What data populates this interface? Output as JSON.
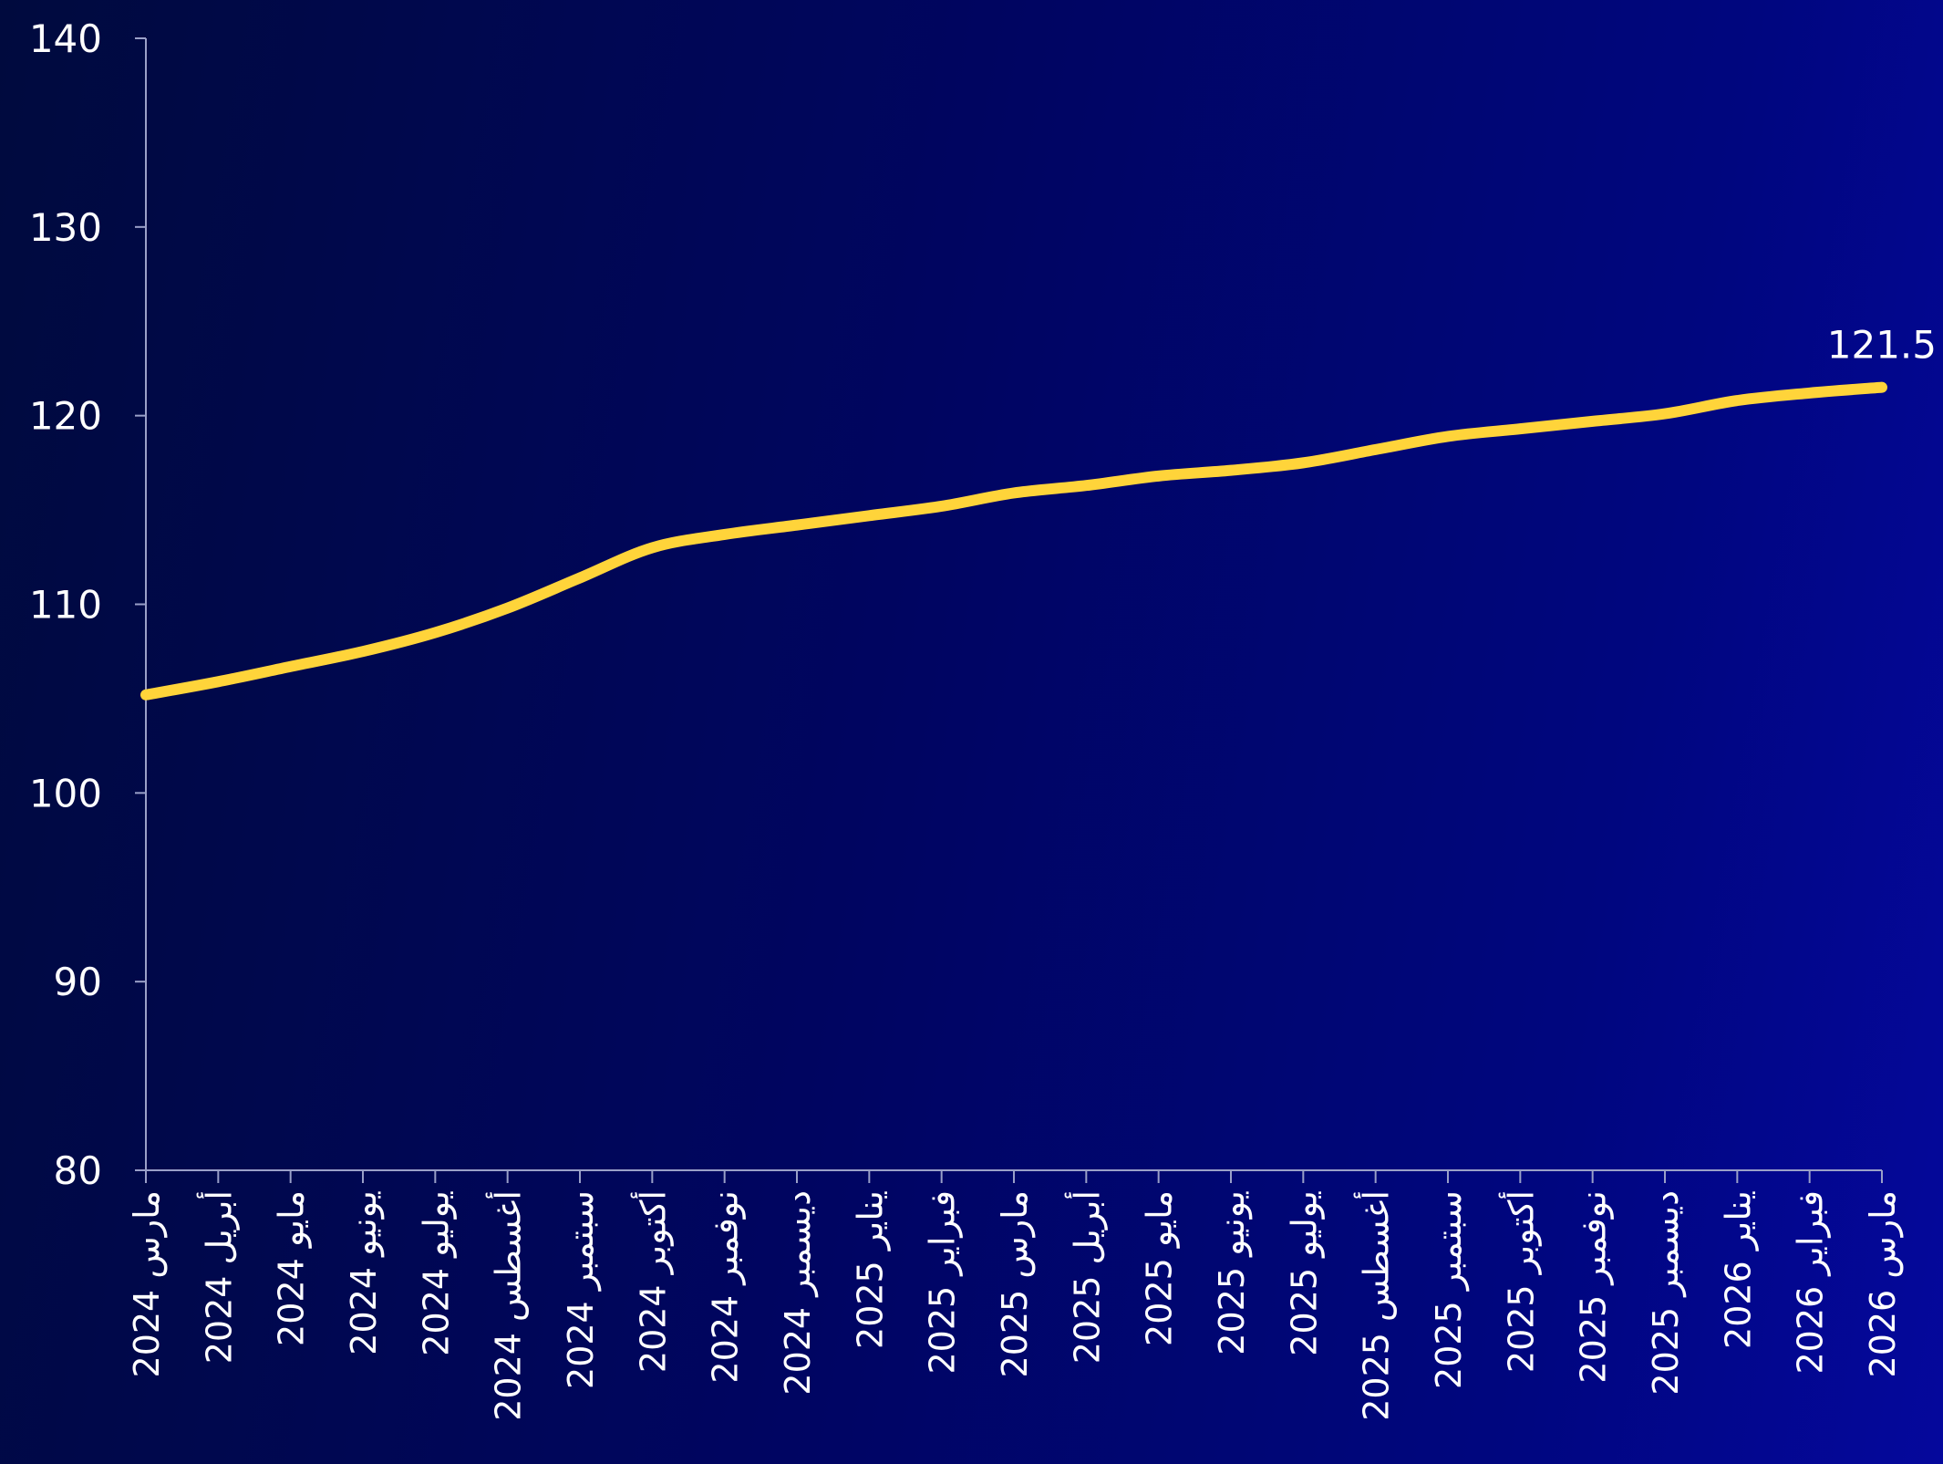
{
  "chart_data": {
    "type": "line",
    "title": "",
    "xlabel": "",
    "ylabel": "",
    "ylim": [
      80,
      140
    ],
    "y_ticks": [
      80,
      90,
      100,
      110,
      120,
      130,
      140
    ],
    "grid": false,
    "legend": "none",
    "categories": [
      "مارس 2024",
      "أبريل 2024",
      "مايو 2024",
      "يونيو 2024",
      "يوليو 2024",
      "أغسطس 2024",
      "سبتمبر 2024",
      "أكتوبر 2024",
      "نوفمبر 2024",
      "ديسمبر 2024",
      "يناير 2025",
      "فبراير 2025",
      "مارس 2025",
      "أبريل 2025",
      "مايو 2025",
      "يونيو 2025",
      "يوليو 2025",
      "أغسطس 2025",
      "سبتمبر 2025",
      "أكتوبر 2025",
      "نوفمبر 2025",
      "ديسمبر 2025",
      "يناير 2026",
      "فبراير 2026",
      "مارس 2026"
    ],
    "series": [
      {
        "values": [
          105.2,
          105.9,
          106.7,
          107.5,
          108.5,
          109.8,
          111.4,
          113.0,
          113.7,
          114.2,
          114.7,
          115.2,
          115.9,
          116.3,
          116.8,
          117.1,
          117.5,
          118.2,
          118.9,
          119.3,
          119.7,
          120.1,
          120.8,
          121.2,
          121.5
        ],
        "color": "#ffd43a",
        "end_label": "121.5"
      }
    ],
    "colors": {
      "line": "#ffd43a",
      "axis": "#9aa0c8",
      "text": "#ffffff"
    }
  }
}
